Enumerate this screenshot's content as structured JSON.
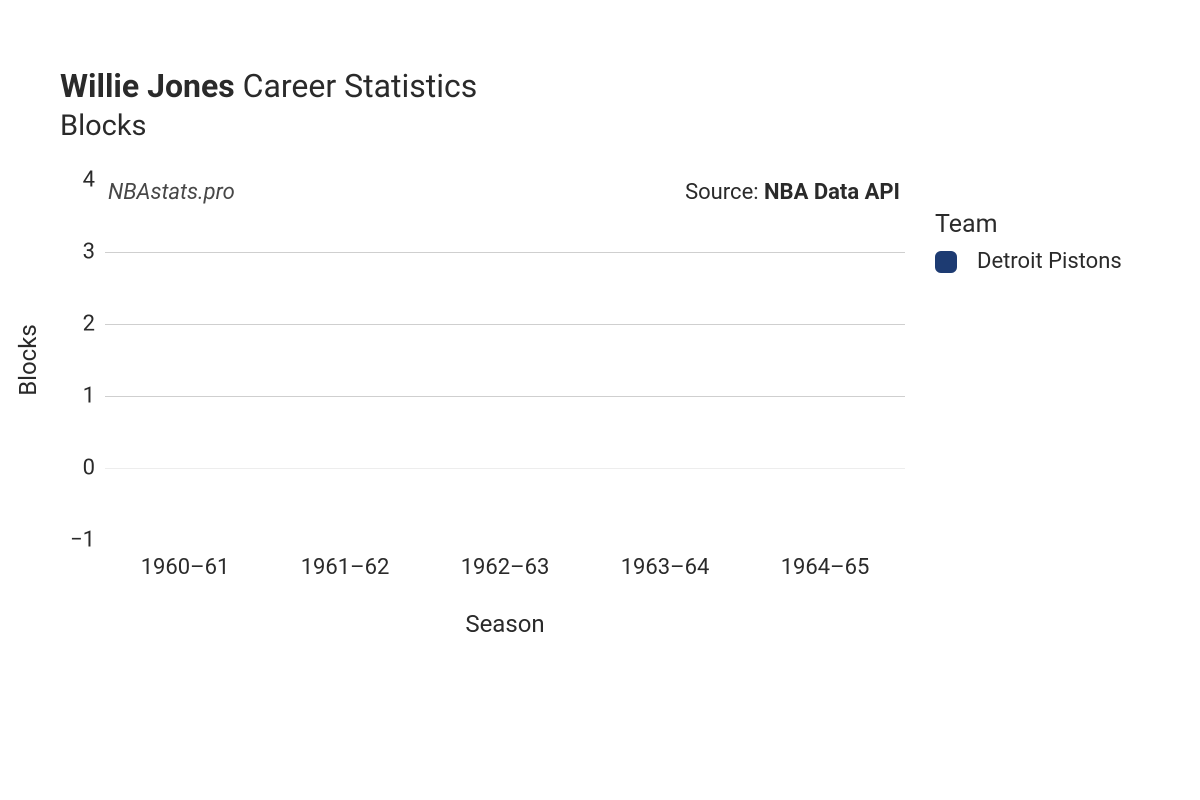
{
  "title": {
    "name": "Willie Jones",
    "suffix": "Career Statistics",
    "subtitle": "Blocks"
  },
  "watermark": "NBAstats.pro",
  "source": {
    "prefix": "Source: ",
    "name": "NBA Data API"
  },
  "chart": {
    "type": "bar",
    "x_categories": [
      "1960–61",
      "1961–62",
      "1962–63",
      "1963–64",
      "1964–65"
    ],
    "xlabel": "Season",
    "ylabel": "Blocks",
    "ylim": [
      -1,
      4
    ],
    "yticks": [
      -1,
      0,
      1,
      2,
      3,
      4
    ],
    "grid_color": "#cfcfcf",
    "grid_color_light": "#ededed",
    "grid_lines_at": [
      0,
      1,
      2,
      3
    ],
    "background_color": "#ffffff",
    "tick_fontsize": 22,
    "label_fontsize": 24,
    "series": []
  },
  "legend": {
    "title": "Team",
    "items": [
      {
        "label": "Detroit Pistons",
        "color": "#1d3b72"
      }
    ]
  },
  "colors": {
    "text": "#2a2a2a",
    "watermark": "#474747"
  }
}
